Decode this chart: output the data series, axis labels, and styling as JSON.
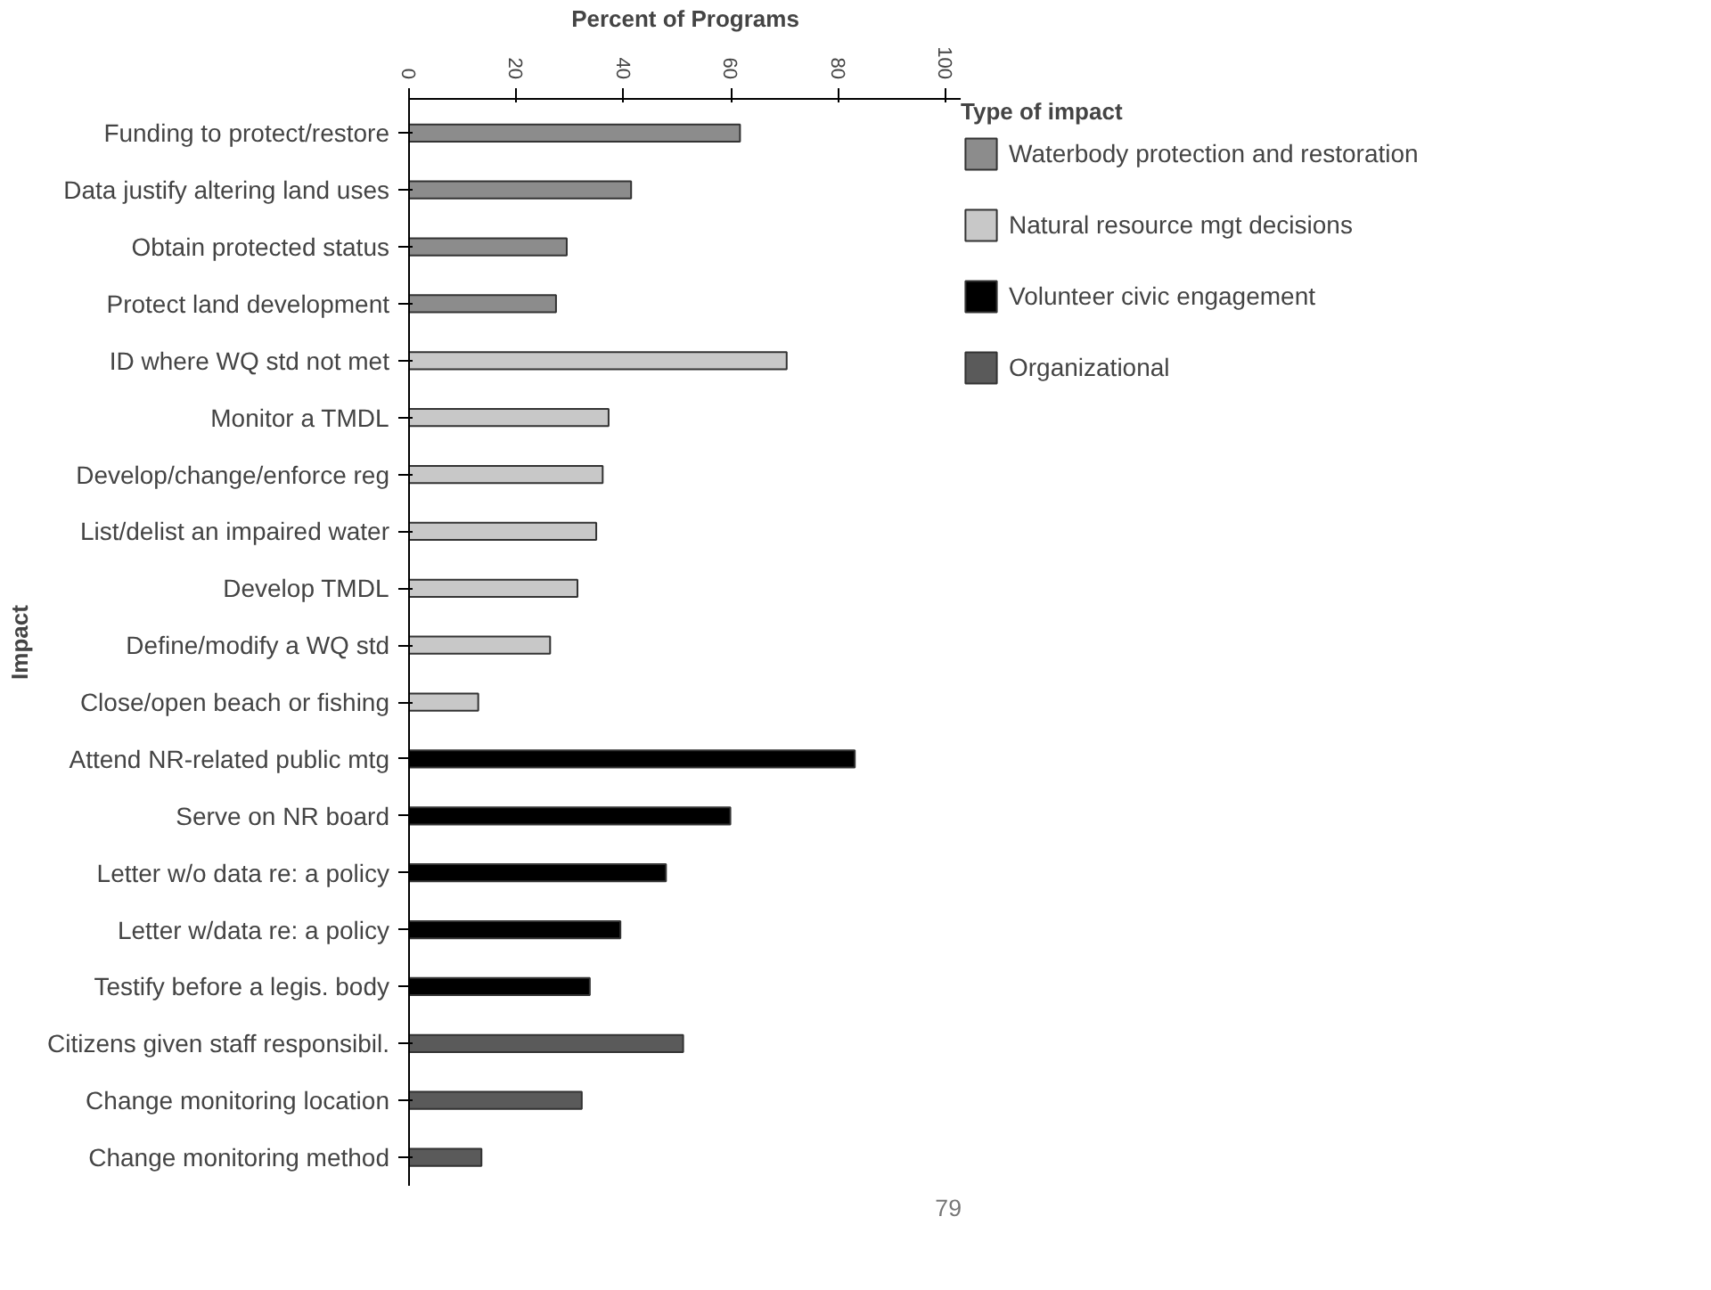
{
  "chart_data": {
    "type": "bar",
    "orientation": "horizontal",
    "xlabel": "Percent of Programs",
    "ylabel": "Impact",
    "legend_title": "Type of impact",
    "legend": "right",
    "grid": false,
    "categories": [
      "Funding to protect/restore",
      "Data justify altering land uses",
      "Obtain protected status",
      "Protect land development",
      "ID where WQ std not met",
      "Monitor a TMDL",
      "Develop/change/enforce reg",
      "List/delist an impaired water",
      "Develop TMDL",
      "Define/modify a WQ std",
      "Close/open beach or fishing",
      "Attend NR-related public mtg",
      "Serve on NR board",
      "Letter w/o data re: a policy",
      "Letter w/data re: a policy",
      "Testify before a legis. body",
      "Citizens given staff responsibil.",
      "Change monitoring location",
      "Change monitoring method"
    ],
    "xlim": [
      0,
      103
    ],
    "xticks": [
      0,
      20,
      40,
      60,
      80,
      100
    ],
    "series": [
      {
        "name": "Waterbody protection and restoration",
        "color": "#8c8c8c",
        "values": [
          61.7,
          41.4,
          29.4,
          27.4,
          null,
          null,
          null,
          null,
          null,
          null,
          null,
          null,
          null,
          null,
          null,
          null,
          null,
          null,
          null
        ]
      },
      {
        "name": "Natural resource mgt decisions",
        "color": "#c8c8c8",
        "values": [
          null,
          null,
          null,
          null,
          70.4,
          37.2,
          36.1,
          34.9,
          31.4,
          26.3,
          12.9,
          null,
          null,
          null,
          null,
          null,
          null,
          null,
          null
        ]
      },
      {
        "name": "Volunteer civic engagement",
        "color": "#000000",
        "values": [
          null,
          null,
          null,
          null,
          null,
          null,
          null,
          null,
          null,
          null,
          null,
          83.1,
          59.9,
          47.9,
          39.4,
          33.7,
          null,
          null,
          null
        ]
      },
      {
        "name": "Organizational",
        "color": "#5a5a5a",
        "values": [
          null,
          null,
          null,
          null,
          null,
          null,
          null,
          null,
          null,
          null,
          null,
          null,
          null,
          null,
          null,
          null,
          51.1,
          32.2,
          13.5
        ]
      }
    ],
    "annotations": [
      "79"
    ]
  }
}
